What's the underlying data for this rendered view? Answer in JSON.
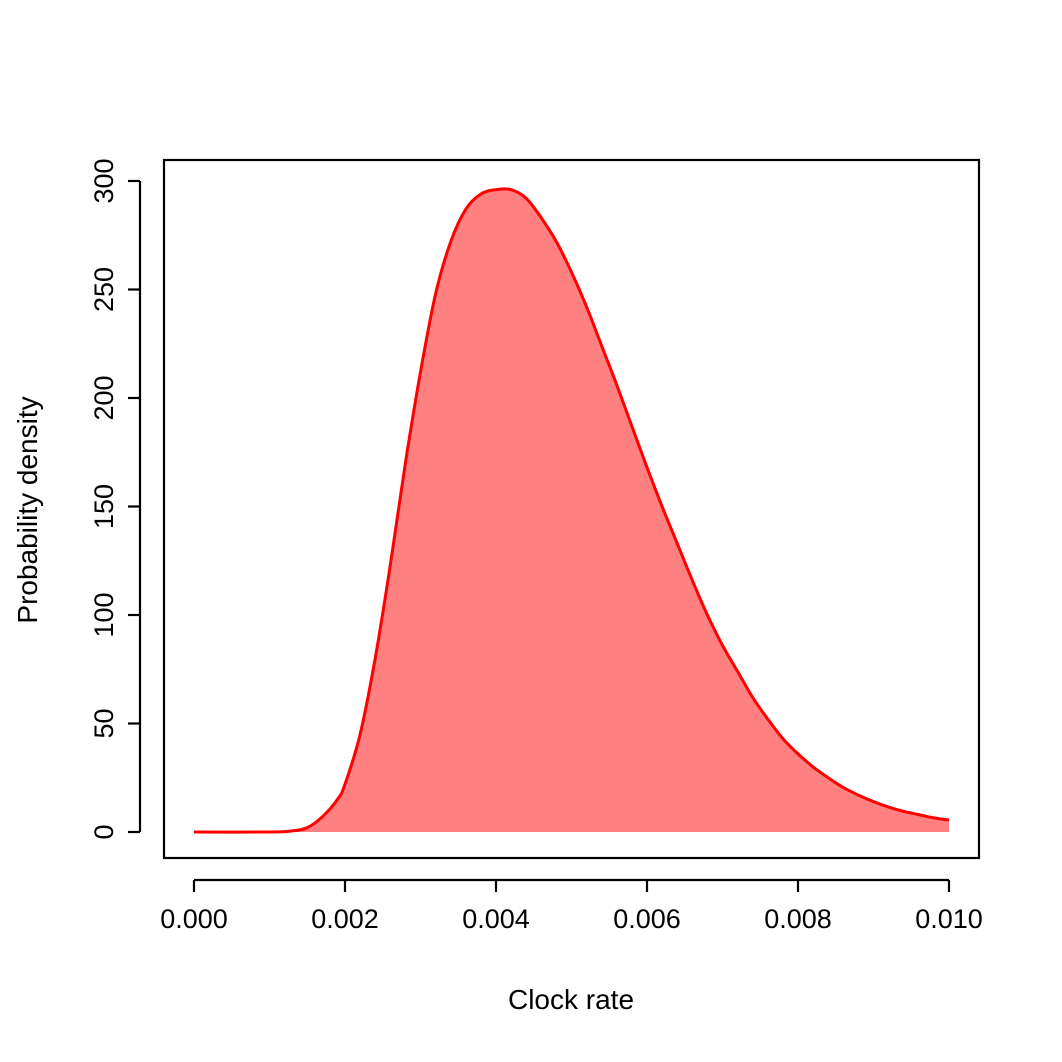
{
  "chart_data": {
    "type": "area",
    "title": "",
    "xlabel": "Clock rate",
    "ylabel": "Probability density",
    "xlim": [
      0.0,
      0.01
    ],
    "ylim": [
      0,
      300
    ],
    "x_ticks": [
      0.0,
      0.002,
      0.004,
      0.006,
      0.008,
      0.01
    ],
    "x_tick_labels": [
      "0.000",
      "0.002",
      "0.004",
      "0.006",
      "0.008",
      "0.010"
    ],
    "y_ticks": [
      0,
      50,
      100,
      150,
      200,
      250,
      300
    ],
    "y_tick_labels": [
      "0",
      "50",
      "100",
      "150",
      "200",
      "250",
      "300"
    ],
    "grid": false,
    "series": [
      {
        "name": "density",
        "line_color": "#ff0000",
        "fill_color": "#ff8080",
        "x": [
          0.0,
          0.001,
          0.0013,
          0.0015,
          0.0017,
          0.0019,
          0.002,
          0.0022,
          0.0024,
          0.0026,
          0.0028,
          0.003,
          0.0032,
          0.0034,
          0.0036,
          0.0038,
          0.004,
          0.0042,
          0.0044,
          0.0046,
          0.0048,
          0.005,
          0.0052,
          0.0054,
          0.0056,
          0.0058,
          0.006,
          0.0062,
          0.0064,
          0.0066,
          0.0068,
          0.007,
          0.0072,
          0.0074,
          0.0076,
          0.0078,
          0.008,
          0.0082,
          0.0084,
          0.0086,
          0.0088,
          0.009,
          0.0092,
          0.0094,
          0.0096,
          0.0098,
          0.01
        ],
        "y": [
          0,
          0,
          0.5,
          2,
          7,
          15,
          22,
          45,
          80,
          123,
          170,
          212,
          248,
          272,
          287,
          294,
          296,
          296,
          292,
          283,
          272,
          258,
          242,
          224,
          206,
          187,
          168,
          150,
          133,
          116,
          100,
          86,
          74,
          62,
          52,
          43,
          36,
          30,
          25,
          20.5,
          17,
          14,
          11.5,
          9.5,
          8,
          6.5,
          5.5
        ]
      }
    ]
  }
}
